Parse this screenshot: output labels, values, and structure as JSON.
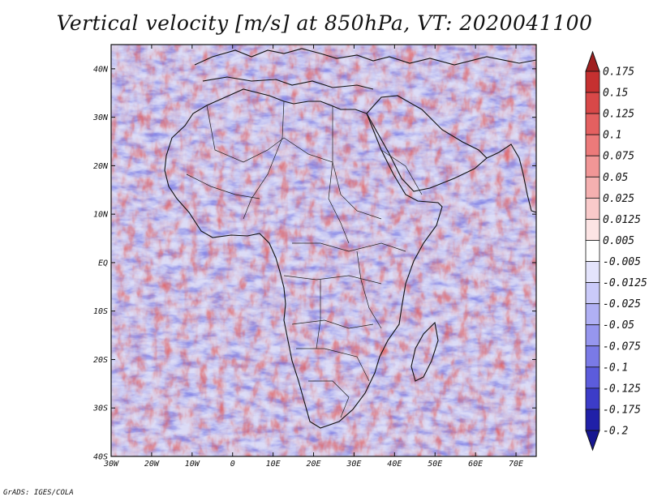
{
  "title": "Vertical velocity [m/s] at 850hPa, VT: 2020041100",
  "credit": "GrADS: IGES/COLA",
  "map": {
    "lon_range": [
      -30,
      75
    ],
    "lat_range": [
      -40,
      45
    ],
    "lon_ticks": [
      {
        "lon": -30,
        "label": "30W"
      },
      {
        "lon": -20,
        "label": "20W"
      },
      {
        "lon": -10,
        "label": "10W"
      },
      {
        "lon": 0,
        "label": "0"
      },
      {
        "lon": 10,
        "label": "10E"
      },
      {
        "lon": 20,
        "label": "20E"
      },
      {
        "lon": 30,
        "label": "30E"
      },
      {
        "lon": 40,
        "label": "40E"
      },
      {
        "lon": 50,
        "label": "50E"
      },
      {
        "lon": 60,
        "label": "60E"
      },
      {
        "lon": 70,
        "label": "70E"
      }
    ],
    "lat_ticks": [
      {
        "lat": 40,
        "label": "40N"
      },
      {
        "lat": 30,
        "label": "30N"
      },
      {
        "lat": 20,
        "label": "20N"
      },
      {
        "lat": 10,
        "label": "10N"
      },
      {
        "lat": 0,
        "label": "EQ"
      },
      {
        "lat": -10,
        "label": "10S"
      },
      {
        "lat": -20,
        "label": "20S"
      },
      {
        "lat": -30,
        "label": "30S"
      },
      {
        "lat": -40,
        "label": "40S"
      }
    ]
  },
  "colorbar": {
    "labels": [
      "0.175",
      "0.15",
      "0.125",
      "0.1",
      "0.075",
      "0.05",
      "0.025",
      "0.0125",
      "0.005",
      "-0.005",
      "-0.0125",
      "-0.025",
      "-0.05",
      "-0.075",
      "-0.1",
      "-0.125",
      "-0.175",
      "-0.2"
    ],
    "colors": [
      "#a02020",
      "#c53030",
      "#d84848",
      "#e46060",
      "#ec7a7a",
      "#f19696",
      "#f5b0b0",
      "#f9caca",
      "#fce4e4",
      "#ffffff",
      "#e4e4fc",
      "#cacaf9",
      "#b0b0f4",
      "#9696ee",
      "#7a7ae6",
      "#5c5cdc",
      "#3c3cc8",
      "#2020a8",
      "#161690"
    ]
  },
  "style": {
    "positive_color": "#e06060",
    "negative_color": "#7070e0",
    "coast_color": "#111111"
  }
}
